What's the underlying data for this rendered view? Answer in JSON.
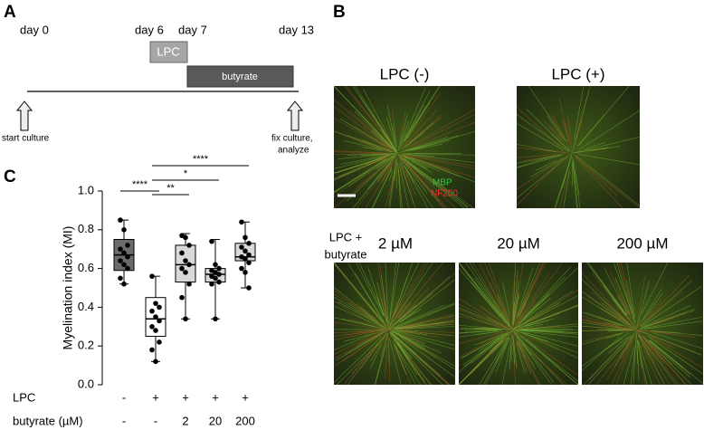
{
  "panels": {
    "a": "A",
    "b": "B",
    "c": "C"
  },
  "timeline": {
    "days": [
      "day 0",
      "day 6",
      "day 7",
      "day 13"
    ],
    "lpc": "LPC",
    "butyrate": "butyrate",
    "start": "start culture",
    "end": [
      "fix culture,",
      "analyze"
    ]
  },
  "images": {
    "top": [
      "LPC (-)",
      "LPC (+)"
    ],
    "stain_green": "MBP",
    "stain_red": "NF200",
    "row_label": [
      "LPC +",
      "butyrate"
    ],
    "bottom": [
      "2 µM",
      "20 µM",
      "200 µM"
    ]
  },
  "chart_data": {
    "type": "box",
    "ylabel": "Myelination index (MI)",
    "ylim": [
      0,
      1
    ],
    "yticks": [
      {
        "value": 0,
        "label": "0.0"
      },
      0.2,
      0.4,
      0.6,
      0.8,
      {
        "value": 1,
        "label": "1.0"
      }
    ],
    "row_labels": [
      "LPC",
      "butyrate (µM)"
    ],
    "lpc": [
      "-",
      "+",
      "+",
      "+",
      "+"
    ],
    "categories": [
      "-",
      "-",
      "2",
      "20",
      "200"
    ],
    "significance": [
      "****",
      "**",
      "*",
      "****"
    ],
    "boxes": [
      {
        "color": "#6b6b6b",
        "whisker_low": 0.52,
        "q1": 0.59,
        "median": 0.67,
        "q3": 0.75,
        "whisker_high": 0.85,
        "points": [
          0.85,
          0.8,
          0.72,
          0.7,
          0.68,
          0.66,
          0.64,
          0.62,
          0.6,
          0.55,
          0.52
        ]
      },
      {
        "color": "#ffffff",
        "whisker_low": 0.12,
        "q1": 0.25,
        "median": 0.34,
        "q3": 0.45,
        "whisker_high": 0.56,
        "points": [
          0.56,
          0.42,
          0.4,
          0.38,
          0.35,
          0.33,
          0.3,
          0.28,
          0.22,
          0.18,
          0.12
        ]
      },
      {
        "color": "#d9d9d9",
        "whisker_low": 0.34,
        "q1": 0.53,
        "median": 0.62,
        "q3": 0.72,
        "whisker_high": 0.78,
        "points": [
          0.77,
          0.76,
          0.72,
          0.68,
          0.64,
          0.62,
          0.6,
          0.58,
          0.52,
          0.45,
          0.34
        ]
      },
      {
        "color": "#d9d9d9",
        "whisker_low": 0.34,
        "q1": 0.53,
        "median": 0.57,
        "q3": 0.6,
        "whisker_high": 0.75,
        "points": [
          0.74,
          0.62,
          0.6,
          0.59,
          0.58,
          0.57,
          0.56,
          0.55,
          0.53,
          0.52,
          0.34
        ]
      },
      {
        "color": "#d9d9d9",
        "whisker_low": 0.5,
        "q1": 0.64,
        "median": 0.66,
        "q3": 0.73,
        "whisker_high": 0.84,
        "points": [
          0.84,
          0.76,
          0.73,
          0.71,
          0.69,
          0.67,
          0.66,
          0.65,
          0.63,
          0.6,
          0.58,
          0.5
        ]
      }
    ]
  }
}
